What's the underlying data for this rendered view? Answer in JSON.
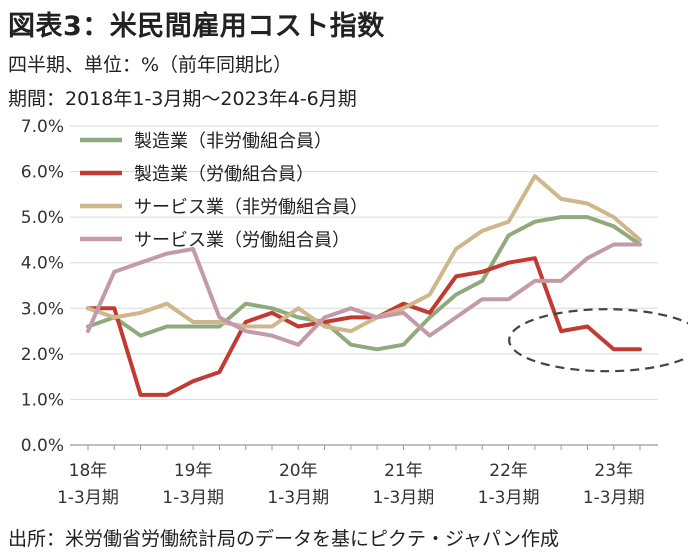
{
  "header": {
    "title": "図表3：米民間雇用コスト指数",
    "subtitle1": "四半期、単位：%（前年同期比）",
    "subtitle2": "期間：2018年1-3月期～2023年4-6月期"
  },
  "footer": {
    "source": "出所：米労働省労働統計局のデータを基にピクテ・ジャパン作成"
  },
  "chart_data": {
    "type": "line",
    "x": [
      "2018Q1",
      "2018Q2",
      "2018Q3",
      "2018Q4",
      "2019Q1",
      "2019Q2",
      "2019Q3",
      "2019Q4",
      "2020Q1",
      "2020Q2",
      "2020Q3",
      "2020Q4",
      "2021Q1",
      "2021Q2",
      "2021Q3",
      "2021Q4",
      "2022Q1",
      "2022Q2",
      "2022Q3",
      "2022Q4",
      "2023Q1",
      "2023Q2"
    ],
    "x_tick_labels": [
      {
        "index": 0,
        "year": "18年",
        "period": "1-3月期"
      },
      {
        "index": 4,
        "year": "19年",
        "period": "1-3月期"
      },
      {
        "index": 8,
        "year": "20年",
        "period": "1-3月期"
      },
      {
        "index": 12,
        "year": "21年",
        "period": "1-3月期"
      },
      {
        "index": 16,
        "year": "22年",
        "period": "1-3月期"
      },
      {
        "index": 20,
        "year": "23年",
        "period": "1-3月期"
      }
    ],
    "ylim": [
      0,
      7
    ],
    "y_ticks": [
      "0.0%",
      "1.0%",
      "2.0%",
      "3.0%",
      "4.0%",
      "5.0%",
      "6.0%",
      "7.0%"
    ],
    "grid": true,
    "legend_position": "top-left",
    "series": [
      {
        "name": "製造業（非労働組合員）",
        "color": "#8faa7c",
        "values": [
          2.6,
          2.8,
          2.4,
          2.6,
          2.6,
          2.6,
          3.1,
          3.0,
          2.8,
          2.7,
          2.2,
          2.1,
          2.2,
          2.8,
          3.3,
          3.6,
          4.6,
          4.9,
          5.0,
          5.0,
          4.8,
          4.4
        ]
      },
      {
        "name": "製造業（労働組合員）",
        "color": "#c23b33",
        "values": [
          3.0,
          3.0,
          1.1,
          1.1,
          1.4,
          1.6,
          2.7,
          2.9,
          2.6,
          2.7,
          2.8,
          2.8,
          3.1,
          2.9,
          3.7,
          3.8,
          4.0,
          4.1,
          2.5,
          2.6,
          2.1,
          2.1
        ]
      },
      {
        "name": "サービス業（非労働組合員）",
        "color": "#cdb78b",
        "values": [
          3.0,
          2.8,
          2.9,
          3.1,
          2.7,
          2.7,
          2.6,
          2.6,
          3.0,
          2.6,
          2.5,
          2.8,
          3.0,
          3.3,
          4.3,
          4.7,
          4.9,
          5.9,
          5.4,
          5.3,
          5.0,
          4.5
        ]
      },
      {
        "name": "サービス業（労働組合員）",
        "color": "#c49aaa",
        "values": [
          2.5,
          3.8,
          4.0,
          4.2,
          4.3,
          2.8,
          2.5,
          2.4,
          2.2,
          2.8,
          3.0,
          2.8,
          2.9,
          2.4,
          2.8,
          3.2,
          3.2,
          3.6,
          3.6,
          4.1,
          4.4,
          4.4
        ]
      }
    ],
    "annotation": {
      "type": "dashed-ellipse",
      "around": "製造業（労働組合員）",
      "from_index": 18,
      "to_index": 21
    }
  }
}
